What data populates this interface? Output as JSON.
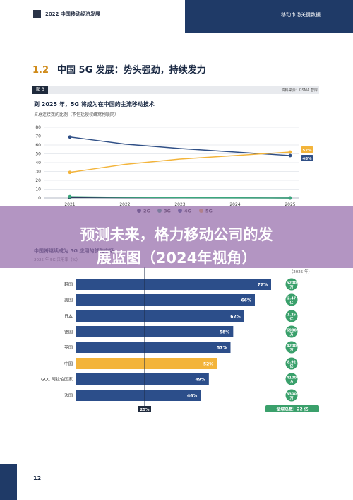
{
  "header": {
    "title": "2022 中国移动经济发展",
    "right_title": "移动市场关键数据"
  },
  "section": {
    "number": "1.2",
    "title": "中国 5G 发展：势头强劲，持续发力"
  },
  "figure_bar": {
    "tag": "图 3",
    "source": "资料来源：GSMA 智库"
  },
  "chart1": {
    "title": "到 2025 年，5G 将成为在中国的主流移动技术",
    "subtitle": "占总连接数的比例（不包括授权蜂窝物联网）"
  },
  "overlay": {
    "line1": "预测未来，格力移动公司的发",
    "line2": "展蓝图（2024年视角）"
  },
  "chart2": {
    "partial_title": "中国将继续成为 5G 应用的领先市场",
    "partial_subtitle": "2025 年 5G 采用率（%）",
    "partial_header_right": "（2025 年）",
    "global_label": "全球总数：22 亿",
    "marker_label": "25%"
  },
  "page_number": "12",
  "colors": {
    "c2g": "#2e3b5e",
    "c3g": "#3aa77c",
    "c4g": "#2f4f86",
    "c5g": "#f3b43a",
    "bar_blue": "#2c4e8a",
    "bar_china": "#f3b43a",
    "green": "#3aa06b"
  },
  "chart_data": [
    {
      "type": "line",
      "x": [
        2021,
        2022,
        2023,
        2024,
        2025
      ],
      "ylim": [
        0,
        80
      ],
      "yticks": [
        0,
        10,
        20,
        30,
        40,
        50,
        60,
        70,
        80
      ],
      "series": [
        {
          "name": "2G",
          "values": [
            0.5,
            0.3,
            0.2,
            0.1,
            0
          ]
        },
        {
          "name": "3G",
          "values": [
            1.5,
            0.8,
            0.4,
            0.2,
            0
          ]
        },
        {
          "name": "4G",
          "values": [
            69,
            61,
            56,
            52,
            48
          ]
        },
        {
          "name": "5G",
          "values": [
            29,
            38,
            44,
            48,
            52
          ]
        }
      ],
      "end_labels": [
        "52%",
        "48%"
      ]
    },
    {
      "type": "bar",
      "orientation": "horizontal",
      "categories": [
        "韩国",
        "美国",
        "日本",
        "德国",
        "英国",
        "中国",
        "GCC 阿拉伯国家",
        "法国"
      ],
      "values": [
        72,
        66,
        62,
        58,
        57,
        52,
        49,
        46
      ],
      "value_labels": [
        "72%",
        "66%",
        "62%",
        "58%",
        "57%",
        "52%",
        "49%",
        "46%"
      ],
      "connections": [
        [
          "5200",
          "万"
        ],
        [
          "2.47",
          "亿"
        ],
        [
          "1.25",
          "亿"
        ],
        [
          "6900",
          "万"
        ],
        [
          "4200",
          "万"
        ],
        [
          "8.92",
          "亿"
        ],
        [
          "4100",
          "万"
        ],
        [
          "3300",
          "万"
        ]
      ],
      "highlight": "中国",
      "xlim": [
        0,
        100
      ],
      "reference_line": 25
    }
  ]
}
